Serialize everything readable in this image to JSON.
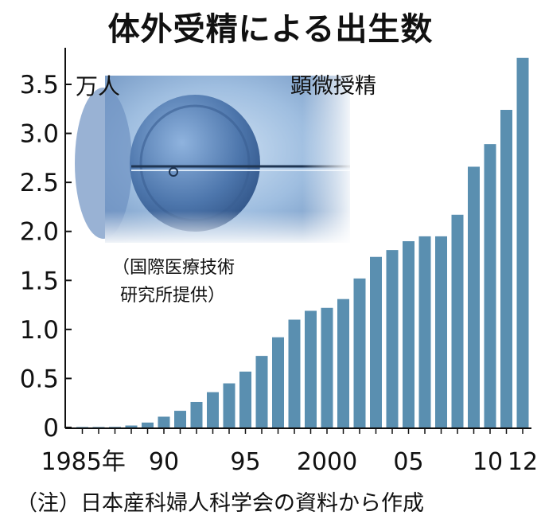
{
  "chart_data": {
    "type": "bar",
    "title": "体外受精による出生数",
    "unit": "万人",
    "ylim": [
      0,
      3.75
    ],
    "yticks": [
      "0",
      "0.5",
      "1.0",
      "1.5",
      "2.0",
      "2.5",
      "3.0",
      "3.5"
    ],
    "x_tick_labels": [
      {
        "year": 1985,
        "label": "1985年"
      },
      {
        "year": 1990,
        "label": "90"
      },
      {
        "year": 1995,
        "label": "95"
      },
      {
        "year": 2000,
        "label": "2000"
      },
      {
        "year": 2005,
        "label": "05"
      },
      {
        "year": 2010,
        "label": "10"
      },
      {
        "year": 2012,
        "label": "12"
      }
    ],
    "years": [
      1985,
      1986,
      1987,
      1988,
      1989,
      1990,
      1991,
      1992,
      1993,
      1994,
      1995,
      1996,
      1997,
      1998,
      1999,
      2000,
      2001,
      2002,
      2003,
      2004,
      2005,
      2006,
      2007,
      2008,
      2009,
      2010,
      2011,
      2012
    ],
    "values": [
      0.003,
      0.004,
      0.006,
      0.02,
      0.05,
      0.11,
      0.17,
      0.26,
      0.36,
      0.45,
      0.57,
      0.73,
      0.92,
      1.1,
      1.19,
      1.22,
      1.31,
      1.52,
      1.74,
      1.81,
      1.9,
      1.95,
      1.95,
      2.17,
      2.66,
      2.89,
      3.24,
      3.77
    ],
    "bar_color": "#5a8fb0"
  },
  "photo": {
    "caption_top": "顕微授精",
    "credit_line1": "（国際医療技術",
    "credit_line2": "研究所提供）"
  },
  "note": "（注）日本産科婦人科学会の資料から作成"
}
